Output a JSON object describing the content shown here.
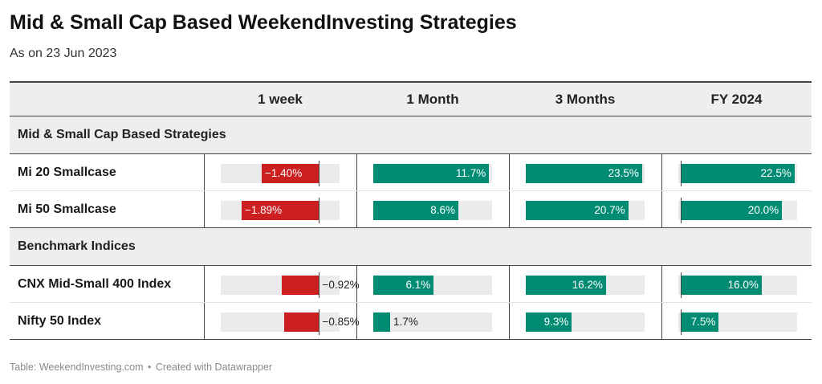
{
  "title": "Mid & Small Cap Based WeekendInvesting Strategies",
  "subtitle": "As on 23 Jun 2023",
  "footer": {
    "source": "Table: WeekendInvesting.com",
    "separator": "•",
    "credit": "Created with Datawrapper"
  },
  "colors": {
    "positive": "#008c72",
    "negative": "#cc1f1f",
    "track": "#ebebeb"
  },
  "chart_data": {
    "type": "table",
    "columns": [
      "",
      "1 week",
      "1 Month",
      "3 Months",
      "FY 2024"
    ],
    "scales": {
      "1 week": {
        "min": -2.4,
        "max": 0.5
      },
      "1 Month": {
        "min": 0,
        "max": 12
      },
      "3 Months": {
        "min": 0,
        "max": 24
      },
      "FY 2024": {
        "min": -0.5,
        "max": 23
      }
    },
    "groups": [
      {
        "label": "Mid & Small Cap Based Strategies",
        "rows": [
          {
            "name": "Mi 20 Smallcase",
            "values": [
              -1.4,
              11.7,
              23.5,
              22.5
            ],
            "labels": [
              "−1.40%",
              "11.7%",
              "23.5%",
              "22.5%"
            ]
          },
          {
            "name": "Mi 50 Smallcase",
            "values": [
              -1.89,
              8.6,
              20.7,
              20.0
            ],
            "labels": [
              "−1.89%",
              "8.6%",
              "20.7%",
              "20.0%"
            ]
          }
        ]
      },
      {
        "label": "Benchmark Indices",
        "rows": [
          {
            "name": "CNX Mid-Small 400 Index",
            "values": [
              -0.92,
              6.1,
              16.2,
              16.0
            ],
            "labels": [
              "−0.92%",
              "6.1%",
              "16.2%",
              "16.0%"
            ]
          },
          {
            "name": "Nifty 50 Index",
            "values": [
              -0.85,
              1.7,
              9.3,
              7.5
            ],
            "labels": [
              "−0.85%",
              "1.7%",
              "9.3%",
              "7.5%"
            ]
          }
        ]
      }
    ]
  }
}
